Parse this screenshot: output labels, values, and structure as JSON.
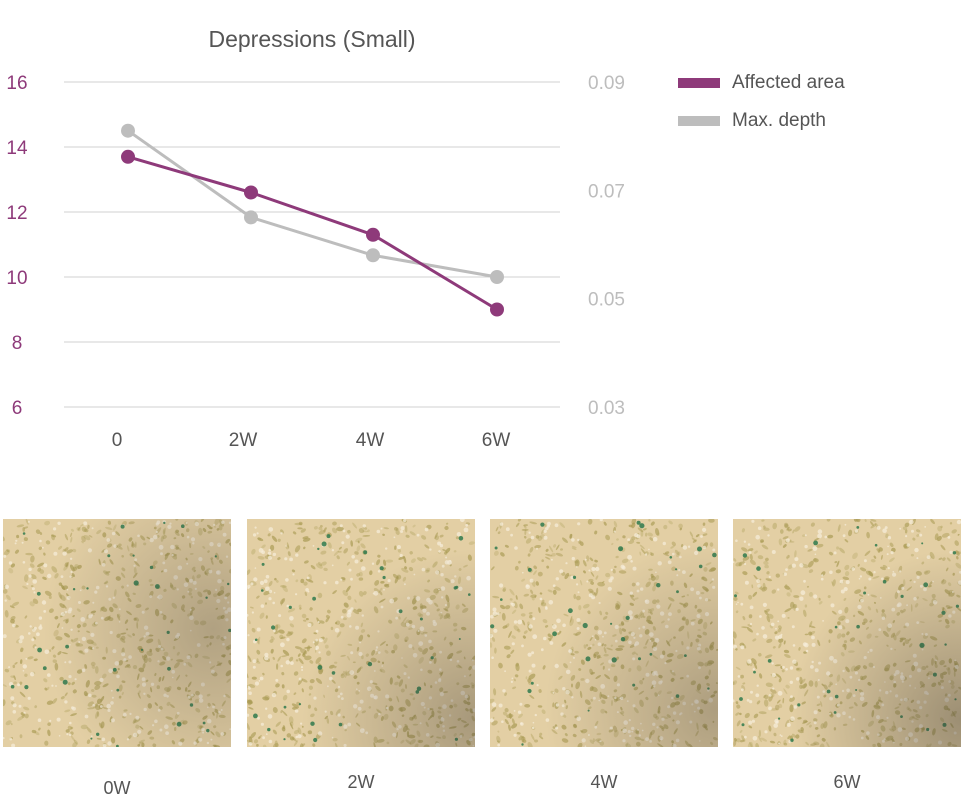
{
  "chart_data": {
    "type": "line",
    "title": "Depressions (Small)",
    "categories": [
      "0",
      "2W",
      "4W",
      "6W"
    ],
    "series": [
      {
        "name": "Affected area",
        "axis": "left",
        "color": "#8e3a7a",
        "values": [
          13.7,
          12.6,
          11.3,
          9.0
        ]
      },
      {
        "name": "Max. depth",
        "axis": "right",
        "color": "#bdbdbd",
        "values": [
          0.081,
          0.065,
          0.058,
          0.054
        ]
      }
    ],
    "y_left": {
      "ticks": [
        "16",
        "14",
        "12",
        "10",
        "8",
        "6"
      ],
      "ylim": [
        6,
        16
      ],
      "color": "#8e3a7a"
    },
    "y_right": {
      "ticks": [
        "0.09",
        "0.07",
        "0.05",
        "0.03"
      ],
      "ylim": [
        0.03,
        0.09
      ],
      "color": "#bdbdbd"
    },
    "grid": true,
    "legend_position": "right"
  },
  "legend": [
    {
      "label": "Affected area",
      "color": "#8e3a7a"
    },
    {
      "label": "Max. depth",
      "color": "#bdbdbd"
    }
  ],
  "photos": [
    {
      "caption": "0W"
    },
    {
      "caption": "2W"
    },
    {
      "caption": "4W"
    },
    {
      "caption": "6W"
    }
  ],
  "colors": {
    "grid": "#d0d0d0",
    "text": "#555555",
    "skin_base": "#e3cfa4",
    "skin_dark": "#a89a52",
    "skin_pore": "#2f7a4e"
  }
}
